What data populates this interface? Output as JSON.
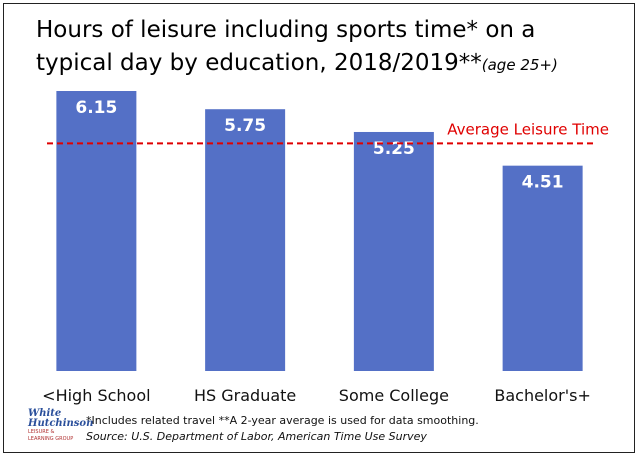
{
  "title": {
    "main": "Hours of leisure including sports time* on a typical day by education, 2018/2019**",
    "sub": "(age 25+)"
  },
  "chart_data": {
    "type": "bar",
    "categories": [
      "<High School",
      "HS Graduate",
      "Some College",
      "Bachelor's+"
    ],
    "values": [
      6.15,
      5.75,
      5.25,
      4.51
    ],
    "ylim": [
      0,
      7
    ],
    "grid": false,
    "bar_color": "#5470C6",
    "reference_line": {
      "label": "Average Leisure Time",
      "value": 5.0,
      "color": "#e00000",
      "style": "dashed"
    }
  },
  "footnote": "*Includes related travel **A 2-year average is used for data smoothing.",
  "source": "Source: U.S. Department of Labor, American Time Use Survey",
  "logo": {
    "line1": "White",
    "line2": "Hutchinson",
    "line3": "LEISURE & LEARNING GROUP"
  }
}
